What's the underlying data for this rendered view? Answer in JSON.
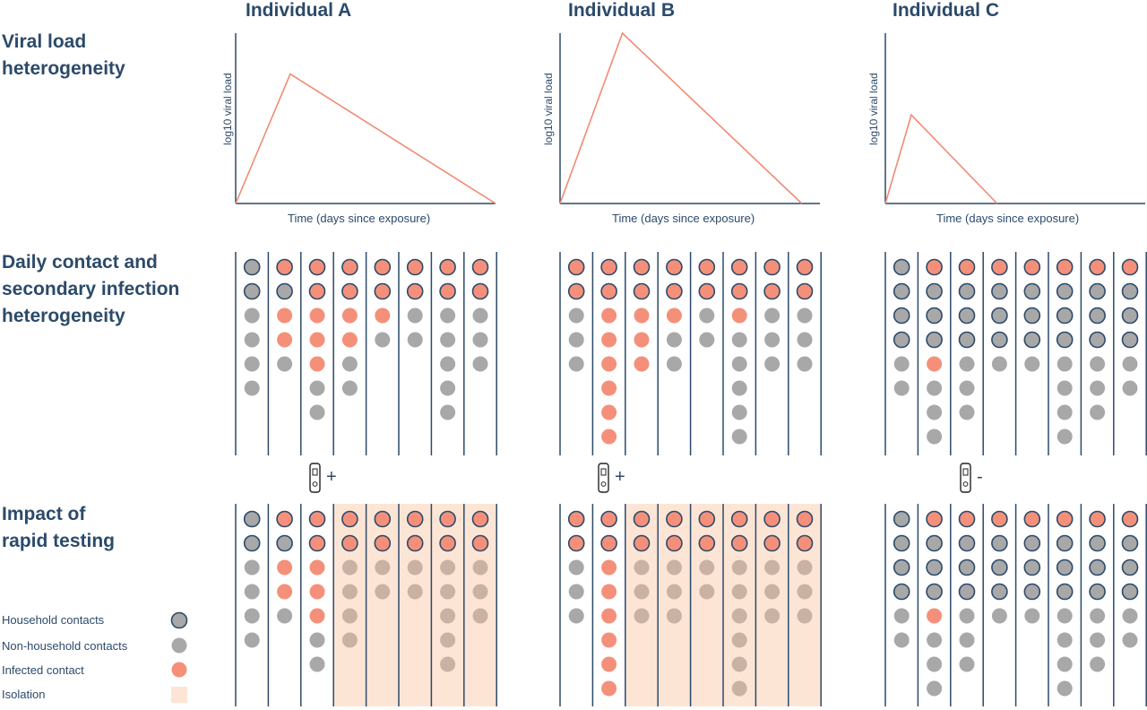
{
  "columns": [
    {
      "title": "Individual A",
      "peak_day_fraction": 0.21,
      "peak_level": 0.76,
      "end_fraction": 1.0,
      "test_label": "+"
    },
    {
      "title": "Individual B",
      "peak_day_fraction": 0.24,
      "peak_level": 1.0,
      "end_fraction": 0.93,
      "test_label": "+"
    },
    {
      "title": "Individual C",
      "peak_day_fraction": 0.1,
      "peak_level": 0.52,
      "end_fraction": 0.44,
      "test_label": "-"
    }
  ],
  "rows": {
    "viral_load": "Viral load\nheterogeneity",
    "contacts": "Daily contact and\nsecondary infection\nheterogeneity",
    "testing": "Impact of\nrapid testing"
  },
  "axes": {
    "ylabel": "log10 viral load",
    "xlabel": "Time (days since exposure)"
  },
  "legend": {
    "household": "Household contacts",
    "non_household": "Non-household contacts",
    "infected": "Infected contact",
    "isolation": "Isolation"
  },
  "colors": {
    "navy": "#2c4a6a",
    "grey": "#a8a8a8",
    "infected": "#f4907a",
    "isolation": "#fde5d6",
    "line": "#f28a72"
  },
  "contact_days": {
    "note_codes": "H=household uninfected, I=household infected, G=non-household, F=non-household infected",
    "A": [
      [
        "H",
        "H",
        "G",
        "G",
        "G",
        "G"
      ],
      [
        "I",
        "H",
        "F",
        "F",
        "G"
      ],
      [
        "I",
        "I",
        "F",
        "F",
        "F",
        "G",
        "G"
      ],
      [
        "I",
        "I",
        "F",
        "F",
        "G",
        "G"
      ],
      [
        "I",
        "I",
        "F",
        "G"
      ],
      [
        "I",
        "I",
        "G",
        "G"
      ],
      [
        "I",
        "I",
        "G",
        "G",
        "G",
        "G",
        "G"
      ],
      [
        "I",
        "I",
        "G",
        "G",
        "G"
      ]
    ],
    "B": [
      [
        "I",
        "I",
        "G",
        "G",
        "G"
      ],
      [
        "I",
        "I",
        "F",
        "F",
        "F",
        "F",
        "F",
        "F"
      ],
      [
        "I",
        "I",
        "F",
        "F",
        "F"
      ],
      [
        "I",
        "I",
        "F",
        "G",
        "G"
      ],
      [
        "I",
        "I",
        "G",
        "G"
      ],
      [
        "I",
        "I",
        "F",
        "G",
        "G",
        "G",
        "G",
        "G"
      ],
      [
        "I",
        "I",
        "G",
        "G",
        "G"
      ],
      [
        "I",
        "I",
        "G",
        "G",
        "G"
      ]
    ],
    "C": [
      [
        "H",
        "H",
        "H",
        "H",
        "G",
        "G"
      ],
      [
        "I",
        "H",
        "H",
        "H",
        "F",
        "G",
        "G",
        "G"
      ],
      [
        "I",
        "H",
        "H",
        "H",
        "G",
        "G",
        "G"
      ],
      [
        "I",
        "H",
        "H",
        "H",
        "G"
      ],
      [
        "I",
        "H",
        "H",
        "H",
        "G"
      ],
      [
        "I",
        "H",
        "H",
        "H",
        "G",
        "G",
        "G",
        "G"
      ],
      [
        "I",
        "H",
        "H",
        "H",
        "G",
        "G",
        "G"
      ],
      [
        "I",
        "H",
        "H",
        "H",
        "G",
        "G"
      ]
    ]
  },
  "isolation_from_day": {
    "A": 3,
    "B": 2,
    "C": null
  }
}
